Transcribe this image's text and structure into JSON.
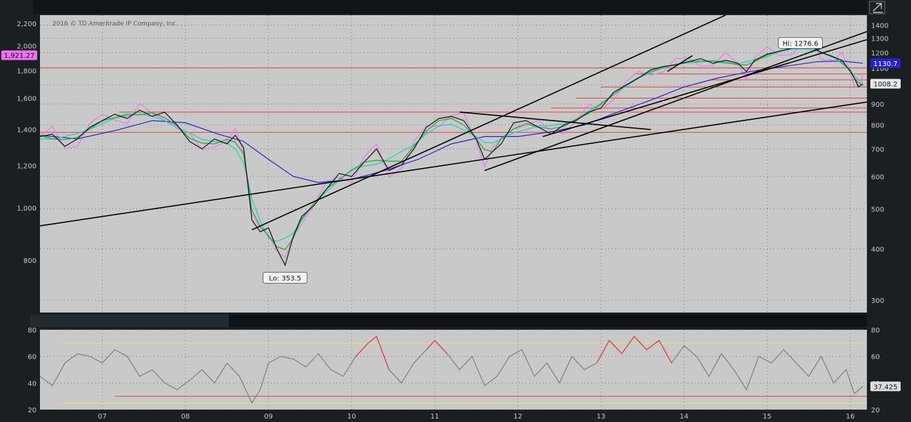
{
  "copyright": "2016 © TD Ameritrade IP Company, Inc.",
  "colors": {
    "background": "#1b1f22",
    "panel": "#c9c9c9",
    "grid": "#666666",
    "price_black": "#111111",
    "ma_green": "#2eaa2e",
    "ma_cyan": "#2ec9c9",
    "ma_blue": "#2323c8",
    "comparison_magenta": "#f070f0",
    "support_red": "#e04040",
    "rsi_gray": "#777777",
    "rsi_overbought": "#e04040",
    "rsi_band_yellow": "#e8e070"
  },
  "chart_data": [
    {
      "type": "line",
      "panel": "price",
      "x_tick_labels": [
        "07",
        "08",
        "09",
        "10",
        "11",
        "12",
        "13",
        "14",
        "15",
        "16"
      ],
      "x_range": [
        2006.25,
        2016.2
      ],
      "left_axis": {
        "scale": "log",
        "ticks": [
          800,
          1000,
          1200,
          1400,
          1600,
          1800,
          2000,
          2200
        ],
        "tick_labels": [
          "800",
          "1,000",
          "1,200",
          "1,400",
          "1,600",
          "1,800",
          "2,000",
          "2,200"
        ],
        "range": [
          640,
          2280
        ]
      },
      "right_axis": {
        "scale": "log",
        "ticks": [
          300,
          400,
          500,
          600,
          700,
          800,
          900,
          1000,
          1100,
          1200,
          1300,
          1400
        ],
        "tick_labels": [
          "300",
          "400",
          "500",
          "600",
          "700",
          "800",
          "900",
          "1000",
          "1100",
          "1200",
          "1300",
          "1400"
        ],
        "range": [
          280,
          1480
        ]
      },
      "badges": [
        {
          "axis": "left",
          "value": 1921.27,
          "label": "1,921.27",
          "bg": "#f070f0",
          "fg": "#111111"
        },
        {
          "axis": "right",
          "value": 1130.7,
          "label": "1130.7",
          "bg": "#2323c8",
          "fg": "#ffffff"
        },
        {
          "axis": "right",
          "value": 1008.2,
          "label": "1008.2",
          "bg": "#e8e8e8",
          "fg": "#111111"
        }
      ],
      "annotations": [
        {
          "label": "Hi: 1276.6",
          "x": 2015.4,
          "y": 1276.6
        },
        {
          "label": "Lo: 353.5",
          "x": 2009.2,
          "y": 353.5
        }
      ],
      "series_price": {
        "x": [
          2006.25,
          2006.4,
          2006.55,
          2006.7,
          2006.85,
          2007.0,
          2007.15,
          2007.3,
          2007.45,
          2007.6,
          2007.75,
          2007.9,
          2008.05,
          2008.2,
          2008.35,
          2008.5,
          2008.6,
          2008.7,
          2008.75,
          2008.8,
          2008.9,
          2009.0,
          2009.1,
          2009.2,
          2009.3,
          2009.4,
          2009.55,
          2009.7,
          2009.85,
          2010.0,
          2010.15,
          2010.3,
          2010.45,
          2010.6,
          2010.75,
          2010.9,
          2011.05,
          2011.2,
          2011.35,
          2011.5,
          2011.6,
          2011.7,
          2011.8,
          2011.95,
          2012.1,
          2012.25,
          2012.4,
          2012.55,
          2012.7,
          2012.85,
          2013.0,
          2013.15,
          2013.3,
          2013.45,
          2013.6,
          2013.75,
          2013.9,
          2014.05,
          2014.2,
          2014.35,
          2014.5,
          2014.65,
          2014.75,
          2014.85,
          2015.0,
          2015.15,
          2015.3,
          2015.45,
          2015.55,
          2015.65,
          2015.8,
          2015.9,
          2016.0,
          2016.05,
          2016.1,
          2016.15
        ],
        "y": [
          750,
          760,
          710,
          740,
          790,
          820,
          850,
          830,
          870,
          840,
          860,
          800,
          730,
          700,
          740,
          720,
          755,
          705,
          580,
          470,
          440,
          450,
          400,
          365,
          430,
          480,
          510,
          560,
          610,
          600,
          650,
          700,
          620,
          640,
          700,
          790,
          830,
          840,
          820,
          740,
          660,
          690,
          720,
          810,
          820,
          790,
          760,
          800,
          820,
          860,
          880,
          960,
          1000,
          1040,
          1090,
          1110,
          1120,
          1140,
          1160,
          1130,
          1150,
          1130,
          1080,
          1150,
          1190,
          1210,
          1230,
          1250,
          1240,
          1200,
          1170,
          1150,
          1080,
          1040,
          990,
          1008
        ]
      },
      "series_ma_blue": {
        "x": [
          2006.25,
          2006.7,
          2007.2,
          2007.6,
          2008.0,
          2008.4,
          2008.7,
          2009.0,
          2009.3,
          2009.6,
          2010.0,
          2010.4,
          2010.8,
          2011.2,
          2011.6,
          2012.0,
          2012.4,
          2012.8,
          2013.2,
          2013.6,
          2014.0,
          2014.4,
          2014.8,
          2015.2,
          2015.6,
          2015.9,
          2016.15
        ],
        "y": [
          755,
          740,
          780,
          820,
          810,
          760,
          730,
          660,
          600,
          580,
          590,
          620,
          660,
          720,
          750,
          750,
          770,
          800,
          860,
          920,
          990,
          1040,
          1080,
          1110,
          1140,
          1145,
          1131
        ]
      },
      "support_lines": [
        {
          "value": 1820,
          "axis": "left",
          "x_start": 2006.25,
          "x_end": 2016.2
        },
        {
          "value": 1065,
          "axis": "right",
          "x_start": 2013.4,
          "x_end": 2016.2
        },
        {
          "value": 1030,
          "axis": "right",
          "x_start": 2014.3,
          "x_end": 2016.2
        },
        {
          "value": 990,
          "axis": "right",
          "x_start": 2013.0,
          "x_end": 2016.2
        },
        {
          "value": 930,
          "axis": "right",
          "x_start": 2012.7,
          "x_end": 2016.2
        },
        {
          "value": 880,
          "axis": "right",
          "x_start": 2012.4,
          "x_end": 2016.2
        },
        {
          "value": 860,
          "axis": "right",
          "x_start": 2007.2,
          "x_end": 2016.2
        },
        {
          "value": 768,
          "axis": "right",
          "x_start": 2006.25,
          "x_end": 2016.2
        }
      ],
      "trend_lines": [
        {
          "x": [
            2006.25,
            2016.2
          ],
          "y": [
            455,
            910
          ],
          "axis": "right"
        },
        {
          "x": [
            2008.8,
            2014.5
          ],
          "y": [
            445,
            1480
          ],
          "axis": "right"
        },
        {
          "x": [
            2011.6,
            2016.2
          ],
          "y": [
            620,
            1350
          ],
          "axis": "right"
        },
        {
          "x": [
            2012.3,
            2016.2
          ],
          "y": [
            750,
            1290
          ],
          "axis": "right"
        },
        {
          "x": [
            2011.3,
            2013.6
          ],
          "y": [
            860,
            780
          ],
          "axis": "right"
        },
        {
          "x": [
            2013.8,
            2014.1
          ],
          "y": [
            1080,
            1180
          ],
          "axis": "right"
        }
      ]
    },
    {
      "type": "line",
      "panel": "rsi",
      "x_range": [
        2006.25,
        2016.2
      ],
      "y_axis": {
        "ticks": [
          20,
          40,
          60,
          80
        ],
        "tick_labels": [
          "20",
          "40",
          "60",
          "80"
        ],
        "range": [
          20,
          80
        ]
      },
      "badge": {
        "value": 37.425,
        "label": "37.425",
        "bg": "#dddddd",
        "fg": "#111111"
      },
      "bands": [
        {
          "value": 70,
          "color": "#e8e070",
          "x_start": 2006.5,
          "x_end": 2016.2
        },
        {
          "value": 30,
          "color": "#e04040",
          "x_start": 2007.15,
          "x_end": 2016.2
        },
        {
          "value": 25,
          "color": "#e8e070",
          "x_start": 2006.5,
          "x_end": 2016.2
        }
      ],
      "series_rsi": {
        "x": [
          2006.25,
          2006.4,
          2006.55,
          2006.7,
          2006.85,
          2007.0,
          2007.15,
          2007.3,
          2007.45,
          2007.6,
          2007.75,
          2007.9,
          2008.05,
          2008.2,
          2008.35,
          2008.5,
          2008.65,
          2008.8,
          2008.9,
          2009.0,
          2009.15,
          2009.3,
          2009.45,
          2009.6,
          2009.75,
          2009.9,
          2010.05,
          2010.2,
          2010.3,
          2010.45,
          2010.6,
          2010.75,
          2010.9,
          2011.0,
          2011.15,
          2011.3,
          2011.45,
          2011.6,
          2011.75,
          2011.9,
          2012.05,
          2012.2,
          2012.35,
          2012.5,
          2012.65,
          2012.8,
          2012.95,
          2013.1,
          2013.25,
          2013.4,
          2013.55,
          2013.7,
          2013.85,
          2014.0,
          2014.15,
          2014.3,
          2014.45,
          2014.6,
          2014.75,
          2014.9,
          2015.05,
          2015.2,
          2015.35,
          2015.5,
          2015.65,
          2015.8,
          2015.95,
          2016.05,
          2016.15
        ],
        "y": [
          45,
          38,
          55,
          62,
          60,
          55,
          65,
          60,
          45,
          50,
          40,
          35,
          42,
          50,
          40,
          55,
          45,
          25,
          35,
          55,
          60,
          58,
          52,
          62,
          50,
          45,
          60,
          70,
          75,
          50,
          40,
          55,
          65,
          72,
          62,
          50,
          60,
          38,
          45,
          60,
          65,
          45,
          55,
          40,
          60,
          50,
          55,
          72,
          62,
          75,
          65,
          72,
          55,
          68,
          60,
          45,
          62,
          50,
          35,
          60,
          55,
          65,
          55,
          45,
          60,
          40,
          50,
          32,
          37.425
        ]
      }
    }
  ]
}
